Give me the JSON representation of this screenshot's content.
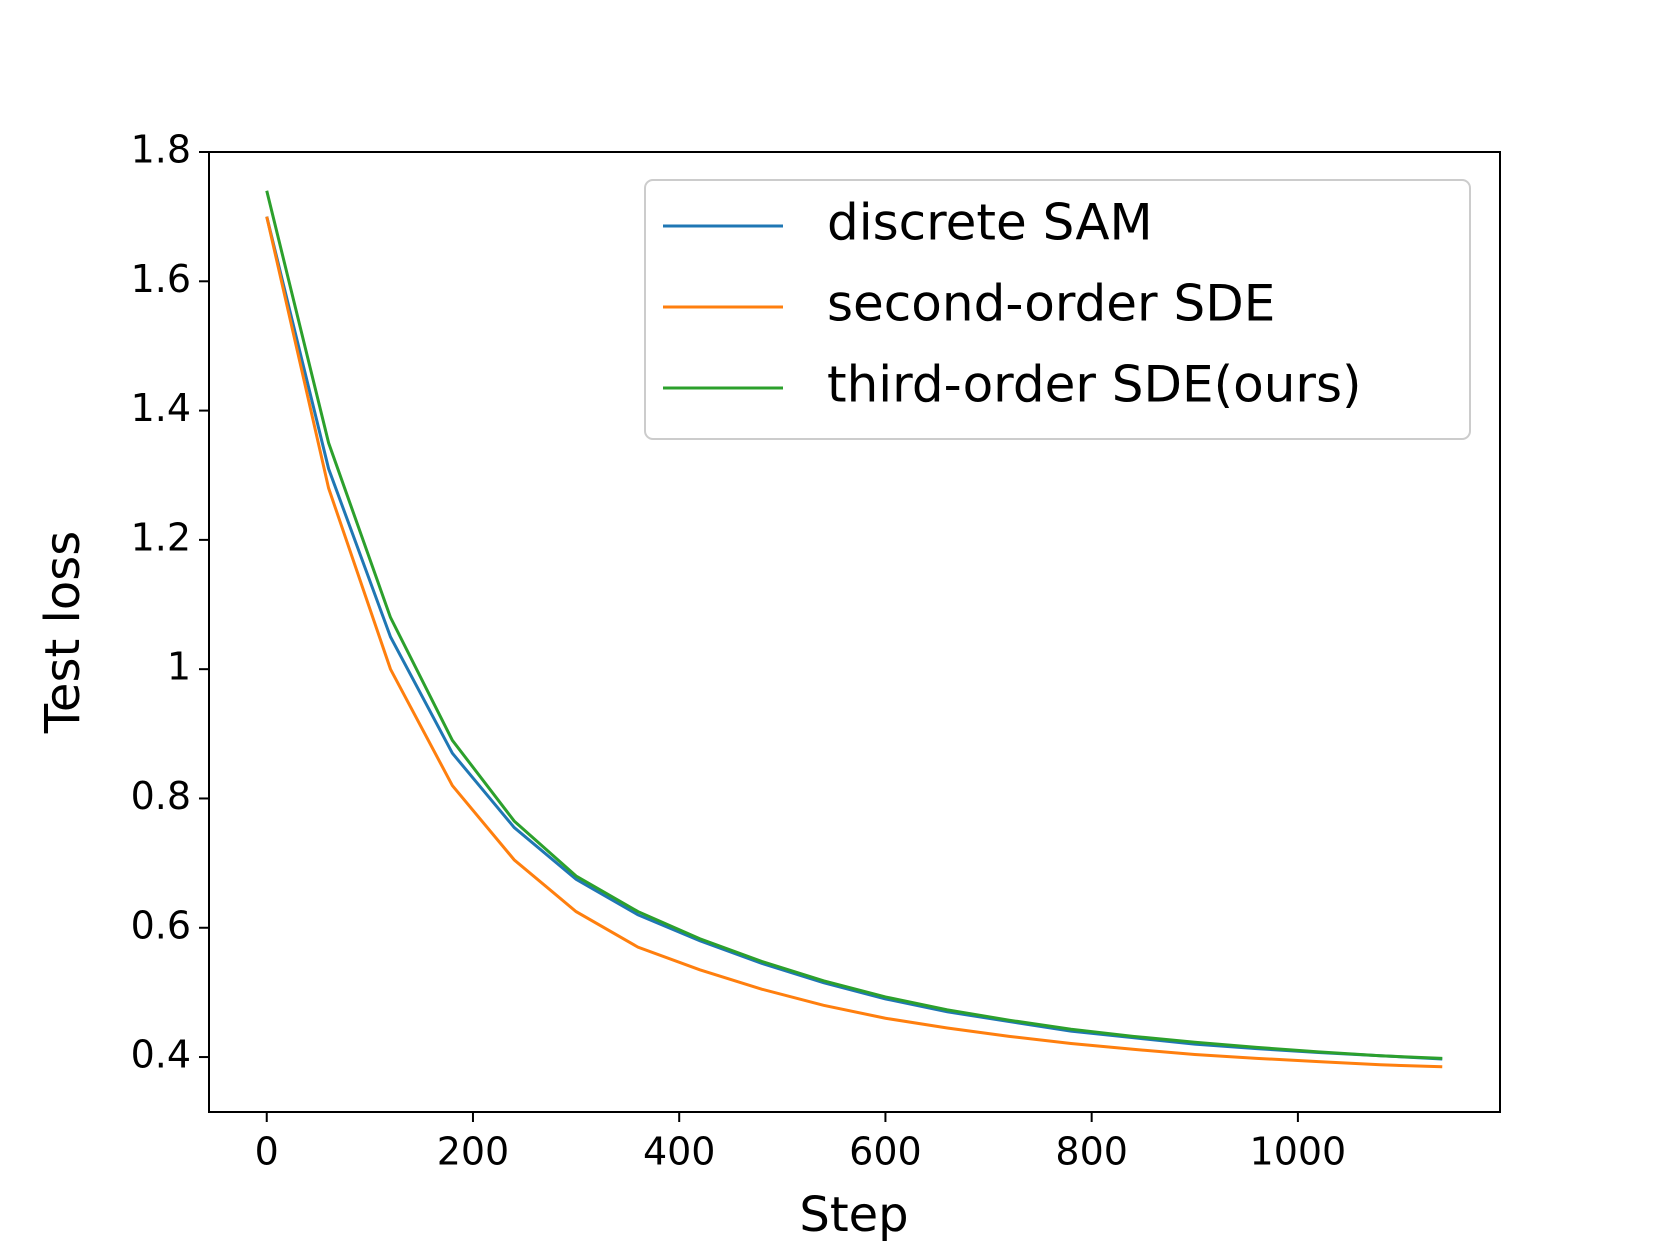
{
  "chart_data": {
    "type": "line",
    "xlabel": "Step",
    "ylabel": "Test loss",
    "x": [
      0,
      60,
      120,
      180,
      240,
      300,
      360,
      420,
      480,
      540,
      600,
      660,
      720,
      780,
      840,
      900,
      960,
      1020,
      1080,
      1140
    ],
    "series": [
      {
        "name": "discrete SAM",
        "color": "#1f77b4",
        "values": [
          1.7,
          1.31,
          1.05,
          0.87,
          0.755,
          0.675,
          0.62,
          0.58,
          0.545,
          0.515,
          0.49,
          0.47,
          0.455,
          0.44,
          0.43,
          0.42,
          0.413,
          0.407,
          0.402,
          0.397
        ]
      },
      {
        "name": "second-order SDE",
        "color": "#ff7f0e",
        "values": [
          1.7,
          1.28,
          1.0,
          0.82,
          0.705,
          0.625,
          0.57,
          0.535,
          0.505,
          0.48,
          0.46,
          0.445,
          0.432,
          0.421,
          0.412,
          0.404,
          0.398,
          0.393,
          0.388,
          0.385
        ]
      },
      {
        "name": "third-order SDE(ours)",
        "color": "#2ca02c",
        "values": [
          1.74,
          1.35,
          1.08,
          0.89,
          0.765,
          0.68,
          0.625,
          0.583,
          0.548,
          0.518,
          0.493,
          0.473,
          0.457,
          0.443,
          0.432,
          0.423,
          0.415,
          0.408,
          0.402,
          0.398
        ]
      }
    ],
    "xlim": [
      -56,
      1196
    ],
    "ylim": [
      0.315,
      1.8
    ],
    "xticks": [
      0,
      200,
      400,
      600,
      800,
      1000
    ],
    "yticks": [
      0.4,
      0.6,
      0.8,
      1.0,
      1.2,
      1.4,
      1.6,
      1.8
    ],
    "legend": "upper right"
  }
}
